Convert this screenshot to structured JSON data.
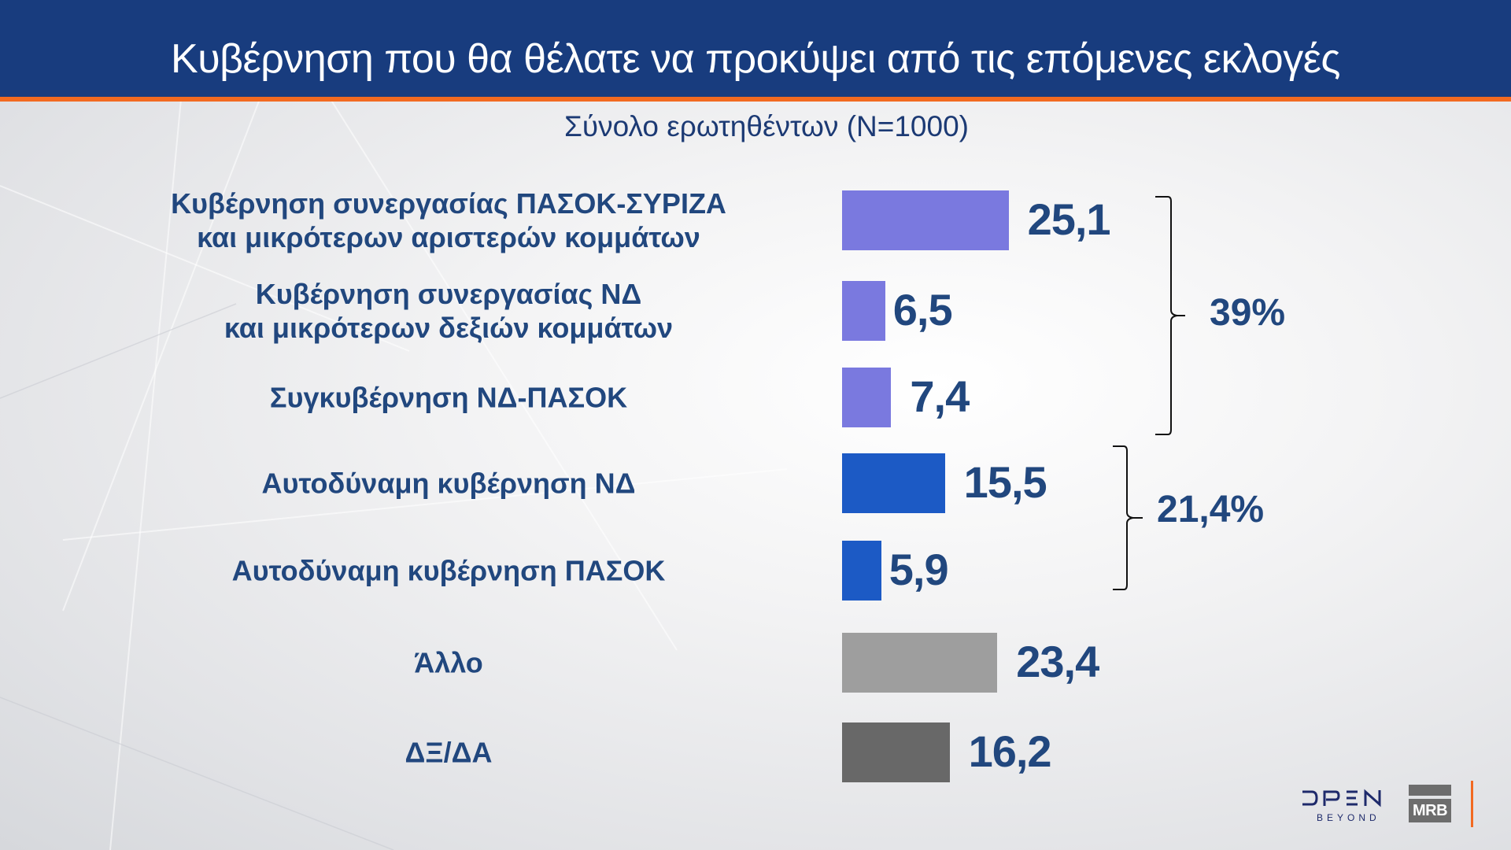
{
  "header": {
    "title": "Κυβέρνηση που θα θέλατε να προκύψει από τις επόμενες εκλογές",
    "subtitle": "Σύνολο ερωτηθέντων (Ν=1000)"
  },
  "colors": {
    "header_bg": "#183c7e",
    "accent": "#f26a21",
    "text": "#21477e",
    "bar_coalition": "#7a79df",
    "bar_majority": "#1c5ac5",
    "bar_other": "#9e9e9e",
    "bar_dk": "#686868"
  },
  "rows": [
    {
      "label_lines": [
        "Κυβέρνηση συνεργασίας ΠΑΣΟΚ-ΣΥΡΙΖΑ",
        "και μικρότερων αριστερών κομμάτων"
      ],
      "value": "25,1"
    },
    {
      "label_lines": [
        "Κυβέρνηση συνεργασίας ΝΔ",
        "και μικρότερων δεξιών κομμάτων"
      ],
      "value": "6,5"
    },
    {
      "label_lines": [
        "Συγκυβέρνηση ΝΔ-ΠΑΣΟΚ"
      ],
      "value": "7,4"
    },
    {
      "label_lines": [
        "Αυτοδύναμη κυβέρνηση ΝΔ"
      ],
      "value": "15,5"
    },
    {
      "label_lines": [
        "Αυτοδύναμη κυβέρνηση ΠΑΣΟΚ"
      ],
      "value": "5,9"
    },
    {
      "label_lines": [
        "Άλλο"
      ],
      "value": "23,4"
    },
    {
      "label_lines": [
        "ΔΞ/ΔΑ"
      ],
      "value": "16,2"
    }
  ],
  "groups": [
    {
      "total": "39%",
      "rows": [
        0,
        1,
        2
      ]
    },
    {
      "total": "21,4%",
      "rows": [
        3,
        4
      ]
    }
  ],
  "logos": {
    "broadcaster_word": "OPEN",
    "broadcaster_sub": "BEYOND",
    "pollster": "MRB"
  },
  "chart_data": {
    "type": "bar",
    "orientation": "horizontal",
    "title": "Κυβέρνηση που θα θέλατε να προκύψει από τις επόμενες εκλογές",
    "subtitle": "Σύνολο ερωτηθέντων (Ν=1000)",
    "categories": [
      "Κυβέρνηση συνεργασίας ΠΑΣΟΚ-ΣΥΡΙΖΑ και μικρότερων αριστερών κομμάτων",
      "Κυβέρνηση συνεργασίας ΝΔ και μικρότερων δεξιών κομμάτων",
      "Συγκυβέρνηση ΝΔ-ΠΑΣΟΚ",
      "Αυτοδύναμη κυβέρνηση ΝΔ",
      "Αυτοδύναμη κυβέρνηση ΠΑΣΟΚ",
      "Άλλο",
      "ΔΞ/ΔΑ"
    ],
    "values": [
      25.1,
      6.5,
      7.4,
      15.5,
      5.9,
      23.4,
      16.2
    ],
    "bar_colors": [
      "#7a79df",
      "#7a79df",
      "#7a79df",
      "#1c5ac5",
      "#1c5ac5",
      "#9e9e9e",
      "#686868"
    ],
    "annotations": [
      {
        "type": "brace",
        "categories": [
          0,
          1,
          2
        ],
        "label": "39%"
      },
      {
        "type": "brace",
        "categories": [
          3,
          4
        ],
        "label": "21,4%"
      }
    ],
    "xlabel": "",
    "ylabel": "",
    "unit": "%",
    "grid": false,
    "legend": "none",
    "data_labels": true
  }
}
